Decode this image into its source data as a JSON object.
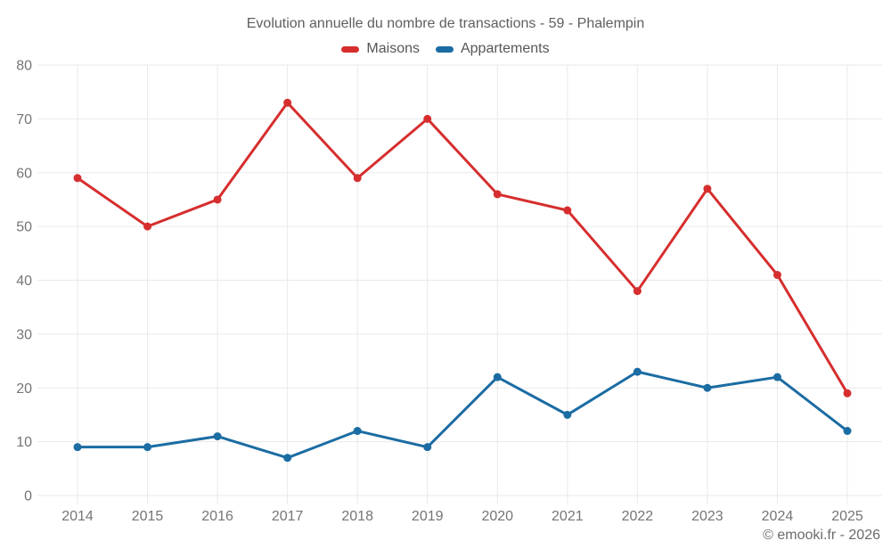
{
  "chart_data": {
    "type": "line",
    "title": "Evolution annuelle du nombre de transactions - 59 - Phalempin",
    "categories": [
      "2014",
      "2015",
      "2016",
      "2017",
      "2018",
      "2019",
      "2020",
      "2021",
      "2022",
      "2023",
      "2024",
      "2025"
    ],
    "series": [
      {
        "name": "Maisons",
        "color": "#d62e2e",
        "values": [
          59,
          50,
          55,
          73,
          59,
          70,
          56,
          53,
          38,
          57,
          41,
          19
        ]
      },
      {
        "name": "Appartements",
        "color": "#1b6ca3",
        "values": [
          9,
          9,
          11,
          7,
          12,
          9,
          22,
          15,
          23,
          20,
          22,
          12
        ]
      }
    ],
    "xlabel": "",
    "ylabel": "",
    "ylim": [
      0,
      80
    ],
    "ytick_step": 10,
    "grid": true,
    "grid_color": "#eaeaea",
    "tick_label_color": "#757575",
    "legend_position": "top",
    "watermark": "© emooki.fr - 2026"
  }
}
